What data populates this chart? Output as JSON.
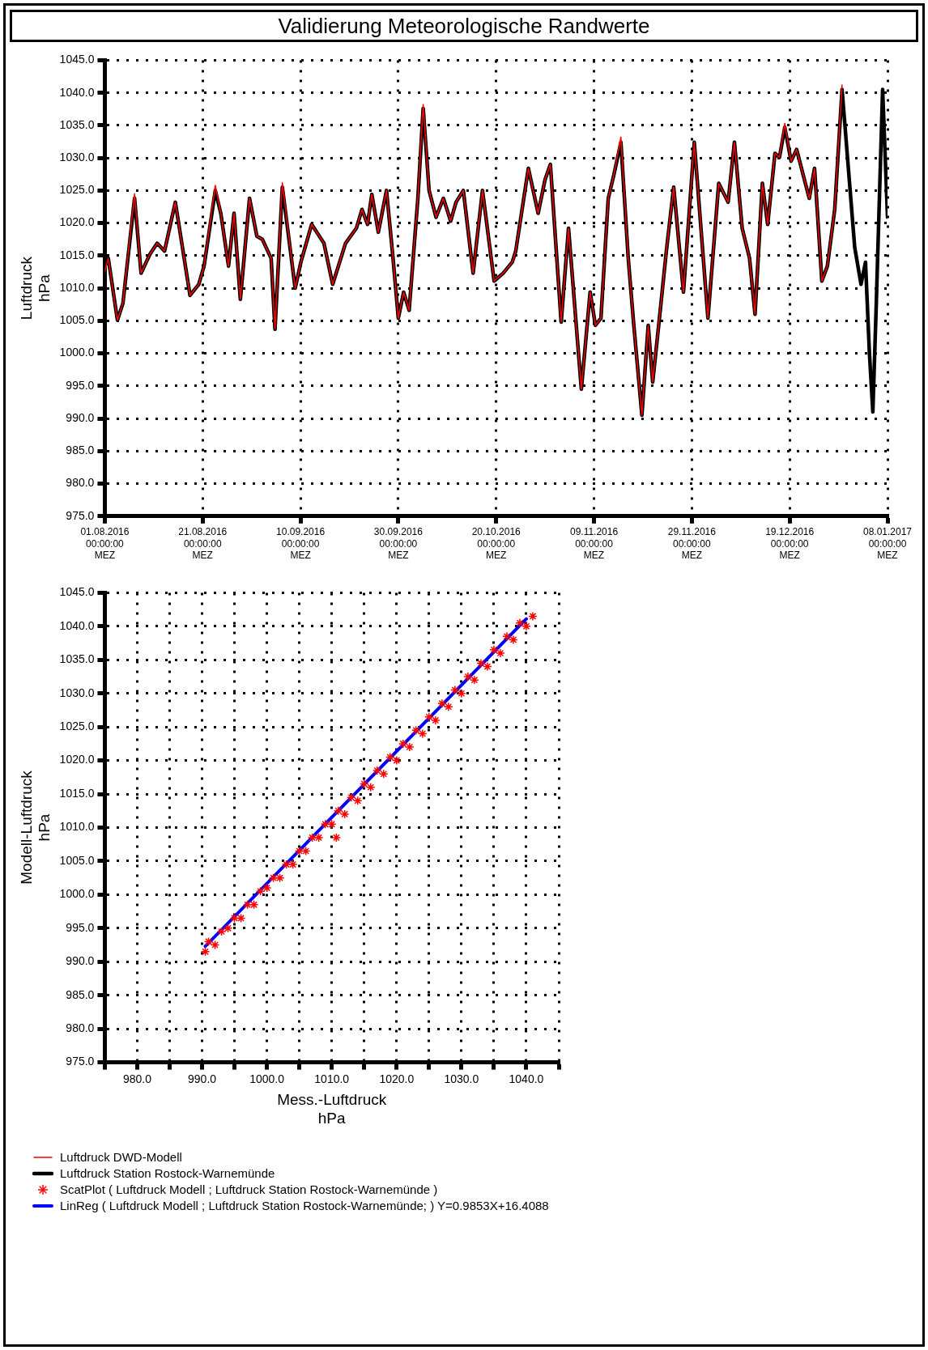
{
  "chart_data": [
    {
      "type": "line",
      "title": "Validierung Meteorologische Randwerte",
      "ylabel": "Luftdruck\nhPa",
      "x": [
        "2016-08-01T00:00",
        "2016-08-01T17:00",
        "2016-08-03T14:00",
        "2016-08-04T17:00",
        "2016-08-07T02:00",
        "2016-08-08T10:00",
        "2016-08-10T05:00",
        "2016-08-11T17:00",
        "2016-08-13T05:00",
        "2016-08-15T10:00",
        "2016-08-18T10:00",
        "2016-08-20T05:00",
        "2016-08-21T07:00",
        "2016-08-23T14:00",
        "2016-08-24T17:00",
        "2016-08-26T07:00",
        "2016-08-27T10:00",
        "2016-08-28T17:00",
        "2016-08-30T14:00",
        "2016-09-01T02:00",
        "2016-09-02T05:00",
        "2016-09-04T00:00",
        "2016-09-04T19:00",
        "2016-09-06T07:00",
        "2016-09-08T22:00",
        "2016-09-10T02:00",
        "2016-09-12T07:00",
        "2016-09-14T19:00",
        "2016-09-16T14:00",
        "2016-09-19T05:00",
        "2016-09-21T10:00",
        "2016-09-22T14:00",
        "2016-09-23T17:00",
        "2016-09-24T14:00",
        "2016-09-25T22:00",
        "2016-09-27T14:00",
        "2016-09-28T22:00",
        "2016-09-30T00:00",
        "2016-10-01T02:00",
        "2016-10-02T05:00",
        "2016-10-04T00:00",
        "2016-10-05T02:00",
        "2016-10-06T07:00",
        "2016-10-07T17:00",
        "2016-10-09T05:00",
        "2016-10-10T17:00",
        "2016-10-11T19:00",
        "2016-10-13T07:00",
        "2016-10-15T07:00",
        "2016-10-17T05:00",
        "2016-10-19T14:00",
        "2016-10-21T10:00",
        "2016-10-23T07:00",
        "2016-10-24T00:00",
        "2016-10-26T14:00",
        "2016-10-28T14:00",
        "2016-10-30T00:00",
        "2016-10-31T02:00",
        "2016-11-02T07:00",
        "2016-11-03T19:00",
        "2016-11-06T10:00",
        "2016-11-08T05:00",
        "2016-11-09T07:00",
        "2016-11-10T10:00",
        "2016-11-11T22:00",
        "2016-11-13T00:00",
        "2016-11-14T12:00",
        "2016-11-16T00:00",
        "2016-11-17T02:00",
        "2016-11-18T19:00",
        "2016-11-20T02:00",
        "2016-11-21T00:00",
        "2016-11-22T07:00",
        "2016-11-23T19:00",
        "2016-11-25T07:00",
        "2016-11-27T07:00",
        "2016-11-29T12:00",
        "2016-12-02T07:00",
        "2016-12-04T12:00",
        "2016-12-06T10:00",
        "2016-12-07T17:00",
        "2016-12-09T07:00",
        "2016-12-10T19:00",
        "2016-12-11T22:00",
        "2016-12-13T10:00",
        "2016-12-14T12:00",
        "2016-12-16T00:00",
        "2016-12-16T22:00",
        "2016-12-18T00:00",
        "2016-12-19T07:00",
        "2016-12-20T10:00",
        "2016-12-23T00:00",
        "2016-12-24T02:00",
        "2016-12-25T14:00",
        "2016-12-26T17:00",
        "2016-12-28T05:00",
        "2016-12-29T17:00",
        "2017-01-01T07:00",
        "2017-01-02T14:00",
        "2017-01-03T12:00",
        "2017-01-04T07:00",
        "2017-01-05T00:00",
        "2017-01-05T17:00",
        "2017-01-07T00:00",
        "2017-01-08T00:00"
      ],
      "series": [
        {
          "name": "Luftdruck DWD-Modell",
          "color": "#ff0000",
          "values": [
            1012.5,
            1014.6,
            1005.1,
            1007.7,
            1024.5,
            1012.3,
            1015.2,
            1016.9,
            1015.7,
            1023.2,
            1008.9,
            1010.6,
            1013.4,
            1025.8,
            1021.5,
            1013.4,
            1021.5,
            1008.3,
            1023.8,
            1018.0,
            1017.5,
            1014.6,
            1003.7,
            1026.2,
            1010.0,
            1014.0,
            1019.8,
            1016.9,
            1010.6,
            1016.9,
            1019.2,
            1022.1,
            1019.8,
            1024.4,
            1018.6,
            1025.0,
            1014.6,
            1005.4,
            1009.4,
            1006.6,
            1023.8,
            1038.2,
            1025.0,
            1020.9,
            1023.8,
            1020.3,
            1023.2,
            1025.0,
            1012.3,
            1025.0,
            1011.1,
            1012.3,
            1014.0,
            1015.7,
            1028.4,
            1021.5,
            1026.7,
            1029.0,
            1004.8,
            1019.2,
            994.5,
            1009.4,
            1004.3,
            1005.4,
            1023.8,
            1027.2,
            1033.2,
            1014.6,
            1004.8,
            990.5,
            1004.3,
            995.6,
            1004.8,
            1015.7,
            1025.5,
            1009.4,
            1032.4,
            1005.4,
            1026.1,
            1023.2,
            1032.4,
            1019.2,
            1014.6,
            1006.0,
            1026.1,
            1019.8,
            1030.7,
            1030.1,
            1035.3,
            1029.5,
            1031.3,
            1023.8,
            1028.4,
            1011.1,
            1013.4,
            1022.1,
            1041.2,
            null,
            null,
            null,
            null,
            null,
            null,
            null,
            null
          ]
        },
        {
          "name": "Luftdruck Station Rostock-Warnemünde",
          "color": "#000000",
          "values": [
            1013.4,
            1014.6,
            1005.1,
            1007.7,
            1023.8,
            1012.3,
            1015.2,
            1016.9,
            1015.7,
            1023.2,
            1008.9,
            1010.6,
            1013.4,
            1025.0,
            1021.5,
            1013.4,
            1021.5,
            1008.3,
            1023.8,
            1018.0,
            1017.5,
            1014.6,
            1003.7,
            1025.5,
            1010.0,
            1014.0,
            1019.8,
            1016.9,
            1010.6,
            1016.9,
            1019.2,
            1022.1,
            1019.8,
            1024.4,
            1018.6,
            1025.0,
            1014.6,
            1005.4,
            1009.4,
            1006.6,
            1023.8,
            1037.6,
            1025.0,
            1020.9,
            1023.8,
            1020.3,
            1023.2,
            1025.0,
            1012.3,
            1025.0,
            1011.1,
            1012.3,
            1014.0,
            1015.7,
            1028.4,
            1021.5,
            1026.7,
            1029.0,
            1004.8,
            1019.2,
            994.5,
            1009.4,
            1004.3,
            1005.4,
            1023.8,
            1027.2,
            1032.4,
            1014.6,
            1004.8,
            990.5,
            1004.3,
            995.6,
            1004.8,
            1015.7,
            1025.5,
            1009.4,
            1032.4,
            1005.4,
            1026.1,
            1023.2,
            1032.4,
            1019.2,
            1014.6,
            1006.0,
            1026.1,
            1019.8,
            1030.7,
            1030.1,
            1034.7,
            1029.5,
            1031.3,
            1023.8,
            1028.4,
            1011.1,
            1013.4,
            1022.1,
            1040.5,
            1016.3,
            1010.6,
            1014.0,
            1000.2,
            991.0,
            1007.7,
            1040.5,
            1020.9
          ]
        }
      ],
      "xlim": [
        "2016-08-01",
        "2017-01-08"
      ],
      "xticks": [
        {
          "value": "2016-08-01",
          "label": "01.08.2016\n00:00:00\nMEZ"
        },
        {
          "value": "2016-08-21",
          "label": "21.08.2016\n00:00:00\nMEZ"
        },
        {
          "value": "2016-09-10",
          "label": "10.09.2016\n00:00:00\nMEZ"
        },
        {
          "value": "2016-09-30",
          "label": "30.09.2016\n00:00:00\nMEZ"
        },
        {
          "value": "2016-10-20",
          "label": "20.10.2016\n00:00:00\nMEZ"
        },
        {
          "value": "2016-11-09",
          "label": "09.11.2016\n00:00:00\nMEZ"
        },
        {
          "value": "2016-11-29",
          "label": "29.11.2016\n00:00:00\nMEZ"
        },
        {
          "value": "2016-12-19",
          "label": "19.12.2016\n00:00:00\nMEZ"
        },
        {
          "value": "2017-01-08",
          "label": "08.01.2017\n00:00:00\nMEZ"
        }
      ],
      "ylim": [
        975,
        1045
      ],
      "yticks": [
        {
          "value": 975,
          "label": "975.0"
        },
        {
          "value": 980,
          "label": "980.0"
        },
        {
          "value": 985,
          "label": "985.0"
        },
        {
          "value": 990,
          "label": "990.0"
        },
        {
          "value": 995,
          "label": "995.0"
        },
        {
          "value": 1000,
          "label": "1000.0"
        },
        {
          "value": 1005,
          "label": "1005.0"
        },
        {
          "value": 1010,
          "label": "1010.0"
        },
        {
          "value": 1015,
          "label": "1015.0"
        },
        {
          "value": 1020,
          "label": "1020.0"
        },
        {
          "value": 1025,
          "label": "1025.0"
        },
        {
          "value": 1030,
          "label": "1030.0"
        },
        {
          "value": 1035,
          "label": "1035.0"
        },
        {
          "value": 1040,
          "label": "1040.0"
        },
        {
          "value": 1045,
          "label": "1045.0"
        }
      ],
      "grid": true,
      "legend": "bottom",
      "marker": "none",
      "line_style": "solid"
    },
    {
      "type": "scatter",
      "xlabel": "Mess.-Luftdruck\nhPa",
      "ylabel": "Modell-Luftdruck\nhPa",
      "series": [
        {
          "name": "ScatPlot ( Luftdruck Modell ; Luftdruck Station Rostock-Warnemünde )",
          "type": "scatter",
          "color": "#ff0000",
          "x": [
            990.5,
            991,
            992,
            993,
            994,
            995,
            996,
            997,
            998,
            999,
            1000,
            1001,
            1002,
            1003,
            1004,
            1005,
            1006,
            1007,
            1008,
            1009,
            1010,
            1010.7,
            1011,
            1012,
            1013,
            1014,
            1015,
            1016,
            1017,
            1018,
            1019,
            1020,
            1021,
            1022,
            1023,
            1024,
            1025,
            1026,
            1027,
            1028,
            1029,
            1030,
            1031,
            1032,
            1033,
            1034,
            1035,
            1036,
            1037,
            1038,
            1039,
            1040,
            1041
          ],
          "values": [
            991.5,
            993,
            992.5,
            994.5,
            995,
            996.5,
            996.5,
            998.5,
            998.5,
            1000.5,
            1001,
            1002.5,
            1002.5,
            1004.5,
            1004.5,
            1006.5,
            1006.5,
            1008.5,
            1008.5,
            1010.5,
            1010.5,
            1008.5,
            1012.5,
            1012,
            1014.5,
            1014,
            1016.5,
            1016,
            1018.5,
            1018,
            1020.5,
            1020,
            1022.5,
            1022,
            1024.5,
            1024,
            1026.5,
            1026,
            1028.5,
            1028,
            1030.5,
            1030,
            1032.5,
            1032,
            1034.5,
            1034,
            1036.5,
            1036,
            1038.5,
            1038,
            1040.5,
            1040,
            1041.5
          ]
        },
        {
          "name": "LinReg ( Luftdruck Modell ; Luftdruck Station Rostock-Warnemünde; ) Y=0.9853X+16.4088",
          "type": "line",
          "marker": "none",
          "color": "#0000ff",
          "x": [
            990.5,
            1040
          ],
          "values": [
            992.3,
            1041.1
          ]
        }
      ],
      "xlim": [
        975,
        1045
      ],
      "xticks": [
        {
          "value": 975,
          "label": null
        },
        {
          "value": 980,
          "label": "980.0"
        },
        {
          "value": 985,
          "label": null
        },
        {
          "value": 990,
          "label": "990.0"
        },
        {
          "value": 995,
          "label": null
        },
        {
          "value": 1000,
          "label": "1000.0"
        },
        {
          "value": 1005,
          "label": null
        },
        {
          "value": 1010,
          "label": "1010.0"
        },
        {
          "value": 1015,
          "label": null
        },
        {
          "value": 1020,
          "label": "1020.0"
        },
        {
          "value": 1025,
          "label": null
        },
        {
          "value": 1030,
          "label": "1030.0"
        },
        {
          "value": 1035,
          "label": null
        },
        {
          "value": 1040,
          "label": "1040.0"
        },
        {
          "value": 1045,
          "label": null
        }
      ],
      "ylim": [
        975,
        1045
      ],
      "yticks": [
        {
          "value": 975,
          "label": "975.0"
        },
        {
          "value": 980,
          "label": "980.0"
        },
        {
          "value": 985,
          "label": "985.0"
        },
        {
          "value": 990,
          "label": "990.0"
        },
        {
          "value": 995,
          "label": "995.0"
        },
        {
          "value": 1000,
          "label": "1000.0"
        },
        {
          "value": 1005,
          "label": "1005.0"
        },
        {
          "value": 1010,
          "label": "1010.0"
        },
        {
          "value": 1015,
          "label": "1015.0"
        },
        {
          "value": 1020,
          "label": "1020.0"
        },
        {
          "value": 1025,
          "label": "1025.0"
        },
        {
          "value": 1030,
          "label": "1030.0"
        },
        {
          "value": 1035,
          "label": "1035.0"
        },
        {
          "value": 1040,
          "label": "1040.0"
        },
        {
          "value": 1045,
          "label": "1045.0"
        }
      ],
      "grid": true,
      "legend": "bottom",
      "marker": "cross"
    }
  ]
}
